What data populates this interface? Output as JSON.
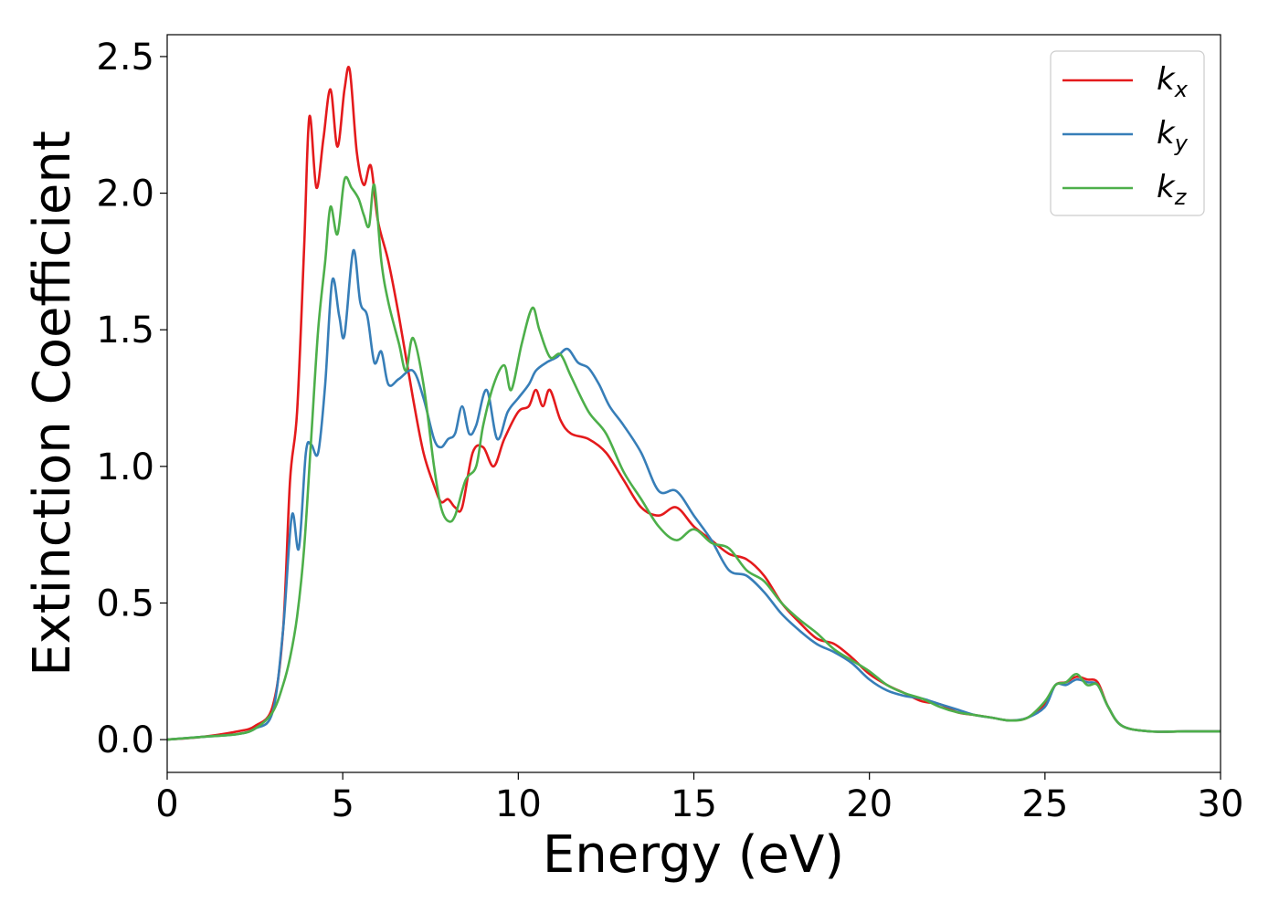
{
  "chart_data": {
    "type": "line",
    "title": "",
    "xlabel": "Energy (eV)",
    "ylabel": "Extinction Coefficient",
    "xlim": [
      0,
      30
    ],
    "ylim": [
      -0.12,
      2.58
    ],
    "xticks": [
      "0",
      "5",
      "10",
      "15",
      "20",
      "25",
      "30"
    ],
    "yticks": [
      "0.0",
      "0.5",
      "1.0",
      "1.5",
      "2.0",
      "2.5"
    ],
    "grid": false,
    "legend_position": "top-right",
    "series": [
      {
        "name": "k_x",
        "legend_main": "k",
        "legend_sub": "x",
        "color": "#e41a1c",
        "points": [
          [
            0,
            0
          ],
          [
            1,
            0.01
          ],
          [
            2,
            0.03
          ],
          [
            2.5,
            0.05
          ],
          [
            3,
            0.12
          ],
          [
            3.3,
            0.4
          ],
          [
            3.5,
            0.95
          ],
          [
            3.7,
            1.2
          ],
          [
            3.9,
            1.8
          ],
          [
            4.05,
            2.28
          ],
          [
            4.25,
            2.02
          ],
          [
            4.45,
            2.2
          ],
          [
            4.65,
            2.38
          ],
          [
            4.85,
            2.17
          ],
          [
            5.05,
            2.38
          ],
          [
            5.2,
            2.45
          ],
          [
            5.4,
            2.15
          ],
          [
            5.6,
            2.03
          ],
          [
            5.8,
            2.1
          ],
          [
            6.0,
            1.9
          ],
          [
            6.3,
            1.75
          ],
          [
            6.6,
            1.55
          ],
          [
            7.0,
            1.25
          ],
          [
            7.3,
            1.05
          ],
          [
            7.6,
            0.93
          ],
          [
            7.8,
            0.87
          ],
          [
            8.0,
            0.88
          ],
          [
            8.2,
            0.85
          ],
          [
            8.4,
            0.85
          ],
          [
            8.7,
            1.05
          ],
          [
            9.0,
            1.07
          ],
          [
            9.3,
            1.0
          ],
          [
            9.6,
            1.1
          ],
          [
            10.0,
            1.2
          ],
          [
            10.3,
            1.22
          ],
          [
            10.5,
            1.28
          ],
          [
            10.7,
            1.22
          ],
          [
            10.9,
            1.28
          ],
          [
            11.2,
            1.17
          ],
          [
            11.5,
            1.12
          ],
          [
            12.0,
            1.1
          ],
          [
            12.5,
            1.05
          ],
          [
            13.0,
            0.95
          ],
          [
            13.5,
            0.85
          ],
          [
            14.0,
            0.82
          ],
          [
            14.5,
            0.85
          ],
          [
            15.0,
            0.78
          ],
          [
            15.5,
            0.73
          ],
          [
            16.0,
            0.68
          ],
          [
            16.5,
            0.66
          ],
          [
            17.0,
            0.6
          ],
          [
            17.5,
            0.5
          ],
          [
            18.0,
            0.43
          ],
          [
            18.5,
            0.37
          ],
          [
            19.0,
            0.35
          ],
          [
            19.5,
            0.3
          ],
          [
            20.0,
            0.24
          ],
          [
            20.5,
            0.2
          ],
          [
            21.0,
            0.17
          ],
          [
            21.5,
            0.14
          ],
          [
            22.0,
            0.13
          ],
          [
            22.5,
            0.1
          ],
          [
            23.0,
            0.09
          ],
          [
            23.5,
            0.08
          ],
          [
            24.0,
            0.07
          ],
          [
            24.5,
            0.08
          ],
          [
            25.0,
            0.13
          ],
          [
            25.3,
            0.2
          ],
          [
            25.6,
            0.21
          ],
          [
            25.9,
            0.23
          ],
          [
            26.2,
            0.22
          ],
          [
            26.5,
            0.21
          ],
          [
            26.8,
            0.12
          ],
          [
            27.2,
            0.05
          ],
          [
            28.0,
            0.03
          ],
          [
            29.0,
            0.03
          ],
          [
            30.0,
            0.03
          ]
        ]
      },
      {
        "name": "k_y",
        "legend_main": "k",
        "legend_sub": "y",
        "color": "#377eb8",
        "points": [
          [
            0,
            0
          ],
          [
            1,
            0.01
          ],
          [
            2,
            0.02
          ],
          [
            2.5,
            0.04
          ],
          [
            3,
            0.1
          ],
          [
            3.3,
            0.4
          ],
          [
            3.55,
            0.82
          ],
          [
            3.75,
            0.7
          ],
          [
            3.95,
            1.05
          ],
          [
            4.1,
            1.08
          ],
          [
            4.3,
            1.05
          ],
          [
            4.5,
            1.3
          ],
          [
            4.7,
            1.68
          ],
          [
            4.9,
            1.55
          ],
          [
            5.05,
            1.48
          ],
          [
            5.3,
            1.79
          ],
          [
            5.5,
            1.6
          ],
          [
            5.7,
            1.55
          ],
          [
            5.9,
            1.38
          ],
          [
            6.1,
            1.42
          ],
          [
            6.3,
            1.3
          ],
          [
            6.6,
            1.32
          ],
          [
            7.0,
            1.35
          ],
          [
            7.3,
            1.25
          ],
          [
            7.6,
            1.1
          ],
          [
            7.8,
            1.07
          ],
          [
            8.0,
            1.1
          ],
          [
            8.2,
            1.12
          ],
          [
            8.4,
            1.22
          ],
          [
            8.6,
            1.12
          ],
          [
            8.8,
            1.15
          ],
          [
            9.1,
            1.28
          ],
          [
            9.4,
            1.1
          ],
          [
            9.7,
            1.2
          ],
          [
            10.0,
            1.25
          ],
          [
            10.3,
            1.3
          ],
          [
            10.5,
            1.35
          ],
          [
            10.8,
            1.38
          ],
          [
            11.1,
            1.4
          ],
          [
            11.4,
            1.43
          ],
          [
            11.7,
            1.38
          ],
          [
            12.0,
            1.36
          ],
          [
            12.3,
            1.3
          ],
          [
            12.6,
            1.22
          ],
          [
            13.0,
            1.15
          ],
          [
            13.5,
            1.05
          ],
          [
            14.0,
            0.91
          ],
          [
            14.5,
            0.91
          ],
          [
            15.0,
            0.82
          ],
          [
            15.5,
            0.73
          ],
          [
            16.0,
            0.62
          ],
          [
            16.5,
            0.6
          ],
          [
            17.0,
            0.54
          ],
          [
            17.5,
            0.46
          ],
          [
            18.0,
            0.4
          ],
          [
            18.5,
            0.35
          ],
          [
            19.0,
            0.32
          ],
          [
            19.5,
            0.28
          ],
          [
            20.0,
            0.22
          ],
          [
            20.5,
            0.18
          ],
          [
            21.0,
            0.16
          ],
          [
            21.5,
            0.15
          ],
          [
            22.0,
            0.13
          ],
          [
            22.5,
            0.11
          ],
          [
            23.0,
            0.09
          ],
          [
            23.5,
            0.08
          ],
          [
            24.0,
            0.07
          ],
          [
            24.5,
            0.08
          ],
          [
            25.0,
            0.12
          ],
          [
            25.3,
            0.2
          ],
          [
            25.6,
            0.2
          ],
          [
            25.9,
            0.22
          ],
          [
            26.2,
            0.21
          ],
          [
            26.5,
            0.2
          ],
          [
            26.8,
            0.12
          ],
          [
            27.2,
            0.05
          ],
          [
            28.0,
            0.03
          ],
          [
            29.0,
            0.03
          ],
          [
            30.0,
            0.03
          ]
        ]
      },
      {
        "name": "k_z",
        "legend_main": "k",
        "legend_sub": "z",
        "color": "#4daf4a",
        "points": [
          [
            0,
            0
          ],
          [
            1,
            0.01
          ],
          [
            2,
            0.02
          ],
          [
            2.5,
            0.04
          ],
          [
            3,
            0.1
          ],
          [
            3.3,
            0.2
          ],
          [
            3.5,
            0.3
          ],
          [
            3.7,
            0.45
          ],
          [
            3.9,
            0.7
          ],
          [
            4.1,
            1.1
          ],
          [
            4.3,
            1.5
          ],
          [
            4.5,
            1.75
          ],
          [
            4.65,
            1.95
          ],
          [
            4.85,
            1.85
          ],
          [
            5.05,
            2.05
          ],
          [
            5.25,
            2.02
          ],
          [
            5.45,
            1.98
          ],
          [
            5.6,
            1.92
          ],
          [
            5.75,
            1.88
          ],
          [
            5.9,
            2.03
          ],
          [
            6.1,
            1.75
          ],
          [
            6.3,
            1.6
          ],
          [
            6.6,
            1.45
          ],
          [
            6.8,
            1.35
          ],
          [
            7.0,
            1.47
          ],
          [
            7.3,
            1.3
          ],
          [
            7.6,
            1.0
          ],
          [
            7.8,
            0.85
          ],
          [
            8.0,
            0.8
          ],
          [
            8.2,
            0.82
          ],
          [
            8.5,
            0.95
          ],
          [
            8.8,
            1.0
          ],
          [
            9.0,
            1.15
          ],
          [
            9.3,
            1.3
          ],
          [
            9.6,
            1.37
          ],
          [
            9.8,
            1.28
          ],
          [
            10.1,
            1.45
          ],
          [
            10.4,
            1.58
          ],
          [
            10.6,
            1.5
          ],
          [
            10.9,
            1.4
          ],
          [
            11.2,
            1.41
          ],
          [
            11.5,
            1.33
          ],
          [
            12.0,
            1.2
          ],
          [
            12.5,
            1.12
          ],
          [
            13.0,
            0.98
          ],
          [
            13.5,
            0.88
          ],
          [
            14.0,
            0.78
          ],
          [
            14.5,
            0.73
          ],
          [
            15.0,
            0.77
          ],
          [
            15.5,
            0.72
          ],
          [
            16.0,
            0.7
          ],
          [
            16.5,
            0.62
          ],
          [
            17.0,
            0.58
          ],
          [
            17.5,
            0.5
          ],
          [
            18.0,
            0.44
          ],
          [
            18.5,
            0.39
          ],
          [
            19.0,
            0.33
          ],
          [
            19.5,
            0.29
          ],
          [
            20.0,
            0.25
          ],
          [
            20.5,
            0.2
          ],
          [
            21.0,
            0.17
          ],
          [
            21.5,
            0.15
          ],
          [
            22.0,
            0.12
          ],
          [
            22.5,
            0.1
          ],
          [
            23.0,
            0.09
          ],
          [
            23.5,
            0.08
          ],
          [
            24.0,
            0.07
          ],
          [
            24.5,
            0.08
          ],
          [
            25.0,
            0.14
          ],
          [
            25.3,
            0.2
          ],
          [
            25.6,
            0.21
          ],
          [
            25.9,
            0.24
          ],
          [
            26.2,
            0.2
          ],
          [
            26.5,
            0.2
          ],
          [
            26.8,
            0.12
          ],
          [
            27.2,
            0.05
          ],
          [
            28.0,
            0.03
          ],
          [
            29.0,
            0.03
          ],
          [
            30.0,
            0.03
          ]
        ]
      }
    ]
  }
}
